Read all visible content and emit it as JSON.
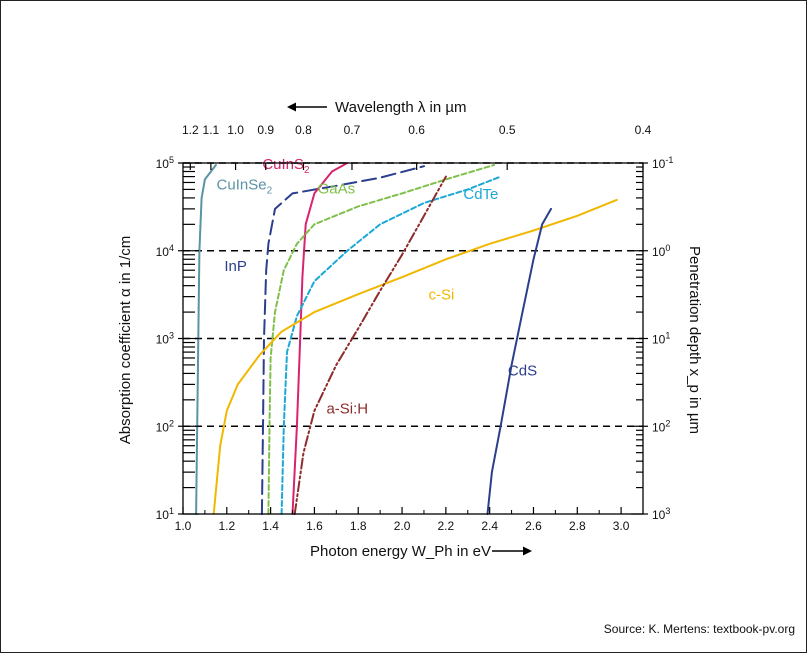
{
  "source": "Source: K. Mertens: textbook-pv.org",
  "chart_data": {
    "type": "line",
    "xlabel_bottom": "Photon energy W_Ph in eV",
    "xlabel_top": "Wavelength λ in µm",
    "ylabel_left": "Absorption coefficient α in 1/cm",
    "ylabel_right": "Penetration depth x_p in µm",
    "xlim": [
      1.0,
      3.1
    ],
    "ylim": [
      10,
      100000
    ],
    "yscale": "log",
    "x_ticks": [
      "1.0",
      "1.2",
      "1.4",
      "1.6",
      "1.8",
      "2.0",
      "2.2",
      "2.4",
      "2.6",
      "2.8",
      "3.0"
    ],
    "y_ticks": [
      "10^1",
      "10^2",
      "10^3",
      "10^4",
      "10^5"
    ],
    "y_ticks_right": [
      "10^3",
      "10^2",
      "10^1",
      "10^0",
      "10^-1"
    ],
    "top_ticks": [
      "1.2",
      "1.1",
      "1.0",
      "0.9",
      "0.8",
      "0.7",
      "0.6",
      "0.5",
      "0.4"
    ],
    "hgrid_dashed_at": [
      100,
      1000,
      10000,
      100000
    ],
    "series": [
      {
        "name": "CuInSe2",
        "label": "CuInSe",
        "label_sub": "2",
        "color": "#5b93a6",
        "dash": "solid",
        "label_at": [
          1.28,
          50000
        ],
        "points": [
          [
            1.06,
            10
          ],
          [
            1.065,
            100
          ],
          [
            1.07,
            1000
          ],
          [
            1.075,
            10000
          ],
          [
            1.085,
            40000
          ],
          [
            1.1,
            65000
          ],
          [
            1.15,
            95000
          ]
        ]
      },
      {
        "name": "InP",
        "label": "InP",
        "color": "#2b3f8e",
        "dash": "long",
        "label_at": [
          1.24,
          5900
        ],
        "points": [
          [
            1.36,
            10
          ],
          [
            1.365,
            100
          ],
          [
            1.37,
            1000
          ],
          [
            1.38,
            6000
          ],
          [
            1.39,
            12000
          ],
          [
            1.42,
            30000
          ],
          [
            1.5,
            45000
          ],
          [
            1.7,
            55000
          ],
          [
            1.9,
            68000
          ],
          [
            2.1,
            92000
          ]
        ]
      },
      {
        "name": "CuInS2",
        "label": "CuInS",
        "label_sub": "2",
        "color": "#d8246e",
        "dash": "solid",
        "label_at": [
          1.47,
          85000
        ],
        "points": [
          [
            1.5,
            10
          ],
          [
            1.52,
            100
          ],
          [
            1.535,
            1000
          ],
          [
            1.545,
            5000
          ],
          [
            1.56,
            20000
          ],
          [
            1.6,
            45000
          ],
          [
            1.68,
            80000
          ],
          [
            1.75,
            100000
          ]
        ]
      },
      {
        "name": "GaAs",
        "label": "GaAs",
        "color": "#80c04a",
        "dash": "short",
        "label_at": [
          1.7,
          45000
        ],
        "points": [
          [
            1.39,
            10
          ],
          [
            1.395,
            100
          ],
          [
            1.4,
            600
          ],
          [
            1.42,
            2000
          ],
          [
            1.46,
            6000
          ],
          [
            1.52,
            12000
          ],
          [
            1.6,
            20000
          ],
          [
            1.8,
            32000
          ],
          [
            2.0,
            45000
          ],
          [
            2.2,
            65000
          ],
          [
            2.42,
            95000
          ]
        ]
      },
      {
        "name": "CdTe",
        "label": "CdTe",
        "color": "#1ba8d6",
        "dash": "short",
        "label_at": [
          2.36,
          39000
        ],
        "points": [
          [
            1.45,
            10
          ],
          [
            1.46,
            100
          ],
          [
            1.475,
            700
          ],
          [
            1.52,
            1800
          ],
          [
            1.6,
            4500
          ],
          [
            1.75,
            10000
          ],
          [
            1.9,
            20000
          ],
          [
            2.1,
            35000
          ],
          [
            2.3,
            50000
          ],
          [
            2.45,
            70000
          ]
        ]
      },
      {
        "name": "c-Si",
        "label": "c-Si",
        "color": "#f0b800",
        "dash": "solid",
        "label_at": [
          2.18,
          2800
        ],
        "points": [
          [
            1.14,
            10
          ],
          [
            1.17,
            60
          ],
          [
            1.2,
            150
          ],
          [
            1.25,
            300
          ],
          [
            1.35,
            650
          ],
          [
            1.45,
            1200
          ],
          [
            1.6,
            2000
          ],
          [
            1.8,
            3200
          ],
          [
            2.0,
            5000
          ],
          [
            2.2,
            8000
          ],
          [
            2.4,
            12000
          ],
          [
            2.6,
            17000
          ],
          [
            2.8,
            25000
          ],
          [
            2.98,
            38000
          ]
        ]
      },
      {
        "name": "a-Si:H",
        "label": "a-Si:H",
        "color": "#8e2b2b",
        "dash": "dashdotdot",
        "label_at": [
          1.75,
          140
        ],
        "points": [
          [
            1.51,
            10
          ],
          [
            1.55,
            50
          ],
          [
            1.6,
            150
          ],
          [
            1.7,
            500
          ],
          [
            1.8,
            1300
          ],
          [
            1.9,
            3500
          ],
          [
            2.0,
            9000
          ],
          [
            2.1,
            25000
          ],
          [
            2.2,
            70000
          ]
        ]
      },
      {
        "name": "CdS",
        "label": "CdS",
        "color": "#2b3f8e",
        "dash": "solid",
        "label_at": [
          2.55,
          380
        ],
        "points": [
          [
            2.39,
            10
          ],
          [
            2.41,
            30
          ],
          [
            2.45,
            100
          ],
          [
            2.5,
            500
          ],
          [
            2.55,
            2000
          ],
          [
            2.6,
            8000
          ],
          [
            2.64,
            20000
          ],
          [
            2.68,
            30000
          ]
        ]
      }
    ]
  }
}
